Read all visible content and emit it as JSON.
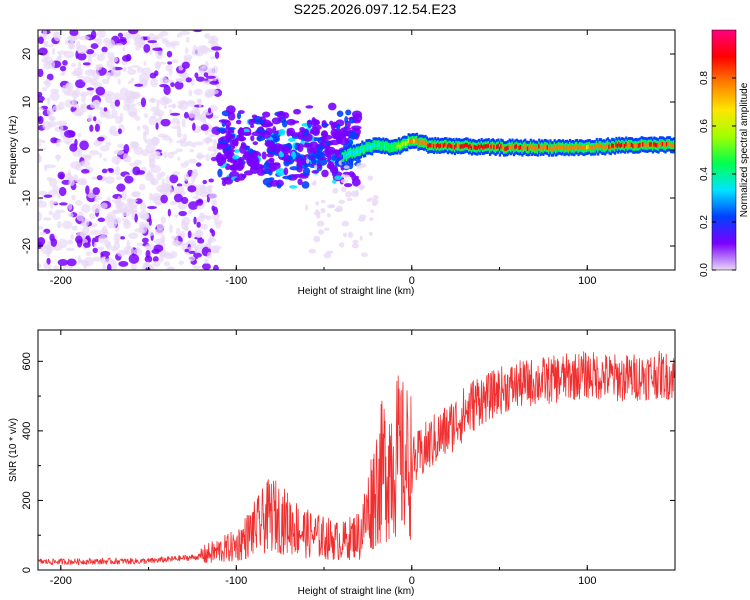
{
  "chart_data": [
    {
      "type": "heatmap",
      "title": "S225.2026.097.12.54.E23",
      "xlabel": "Height of straight line (km)",
      "ylabel": "Frequency (Hz)",
      "xlim": [
        -213,
        150
      ],
      "ylim": [
        -25,
        25
      ],
      "xticks": [
        -200,
        -100,
        0,
        100
      ],
      "yticks": [
        -20,
        -10,
        0,
        10,
        20
      ],
      "colorbar": {
        "label": "Normalized spectral amplitude",
        "range": [
          0.0,
          1.0
        ],
        "ticks": [
          0.0,
          0.2,
          0.4,
          0.6,
          0.8
        ],
        "colormap": [
          "#e8d8f6",
          "#7a00ff",
          "#0040ff",
          "#00e5ff",
          "#00ff50",
          "#a0ff00",
          "#ffe600",
          "#ff8000",
          "#ff0000",
          "#ff0080"
        ]
      },
      "ridge": {
        "description_points_km": [
          -110,
          -60,
          -40,
          -30,
          -20,
          -10,
          0,
          10,
          50,
          80,
          100,
          120,
          150
        ],
        "frequency_hz": [
          1,
          1,
          -1.5,
          0,
          1,
          0.5,
          2,
          1,
          0.5,
          0.5,
          0.5,
          1,
          1
        ],
        "amplitude": [
          0.3,
          0.3,
          0.35,
          0.4,
          0.45,
          0.5,
          0.8,
          0.9,
          0.9,
          0.85,
          0.8,
          0.9,
          0.85
        ]
      }
    },
    {
      "type": "line",
      "title": "",
      "xlabel": "Height of straight line (km)",
      "ylabel": "SNR (10 * v/v)",
      "xlim": [
        -213,
        150
      ],
      "ylim": [
        0,
        690
      ],
      "xticks": [
        -200,
        -100,
        0,
        100
      ],
      "yticks": [
        0,
        200,
        400,
        600
      ],
      "series": [
        {
          "name": "SNR",
          "color": "#f03030",
          "envelope_x": [
            -213,
            -150,
            -120,
            -100,
            -90,
            -80,
            -60,
            -40,
            -30,
            -20,
            -15,
            -10,
            0,
            10,
            20,
            30,
            40,
            50,
            60,
            70,
            80,
            90,
            100,
            110,
            120,
            130,
            140,
            150
          ],
          "envelope_y": [
            20,
            22,
            35,
            60,
            100,
            140,
            90,
            70,
            90,
            250,
            300,
            330,
            300,
            360,
            400,
            450,
            500,
            530,
            545,
            555,
            560,
            570,
            575,
            570,
            565,
            570,
            575,
            570
          ]
        }
      ]
    }
  ]
}
